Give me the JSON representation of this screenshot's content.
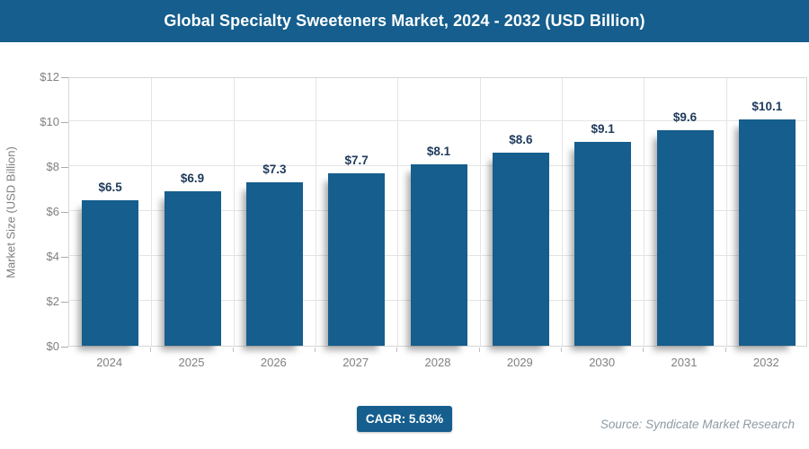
{
  "header": {
    "title": "Global Specialty Sweeteners Market, 2024 - 2032 (USD Billion)"
  },
  "chart_data": {
    "type": "bar",
    "title": "Global Specialty Sweeteners Market, 2024 - 2032 (USD Billion)",
    "categories": [
      "2024",
      "2025",
      "2026",
      "2027",
      "2028",
      "2029",
      "2030",
      "2031",
      "2032"
    ],
    "values": [
      6.5,
      6.9,
      7.3,
      7.7,
      8.1,
      8.6,
      9.1,
      9.6,
      10.1
    ],
    "bar_labels": [
      "$6.5",
      "$6.9",
      "$7.3",
      "$7.7",
      "$8.1",
      "$8.6",
      "$9.1",
      "$9.6",
      "$10.1"
    ],
    "xlabel": "",
    "ylabel": "Market Size (USD Billion)",
    "ylim": [
      0,
      12
    ],
    "ytick_step": 2,
    "ytick_labels": [
      "$0",
      "$2",
      "$4",
      "$6",
      "$8",
      "$10",
      "$12"
    ],
    "grid": true,
    "legend": "none",
    "bar_color": "#155E8D",
    "value_label_color": "#1F3A5C"
  },
  "footer": {
    "cagr_label": "CAGR: 5.63%",
    "source": "Source: Syndicate Market Research"
  },
  "colors": {
    "accent_blue": "#155E8D",
    "axis_text": "#808080",
    "gridline": "#E4E4E4",
    "source_text": "#8D9BA3"
  }
}
